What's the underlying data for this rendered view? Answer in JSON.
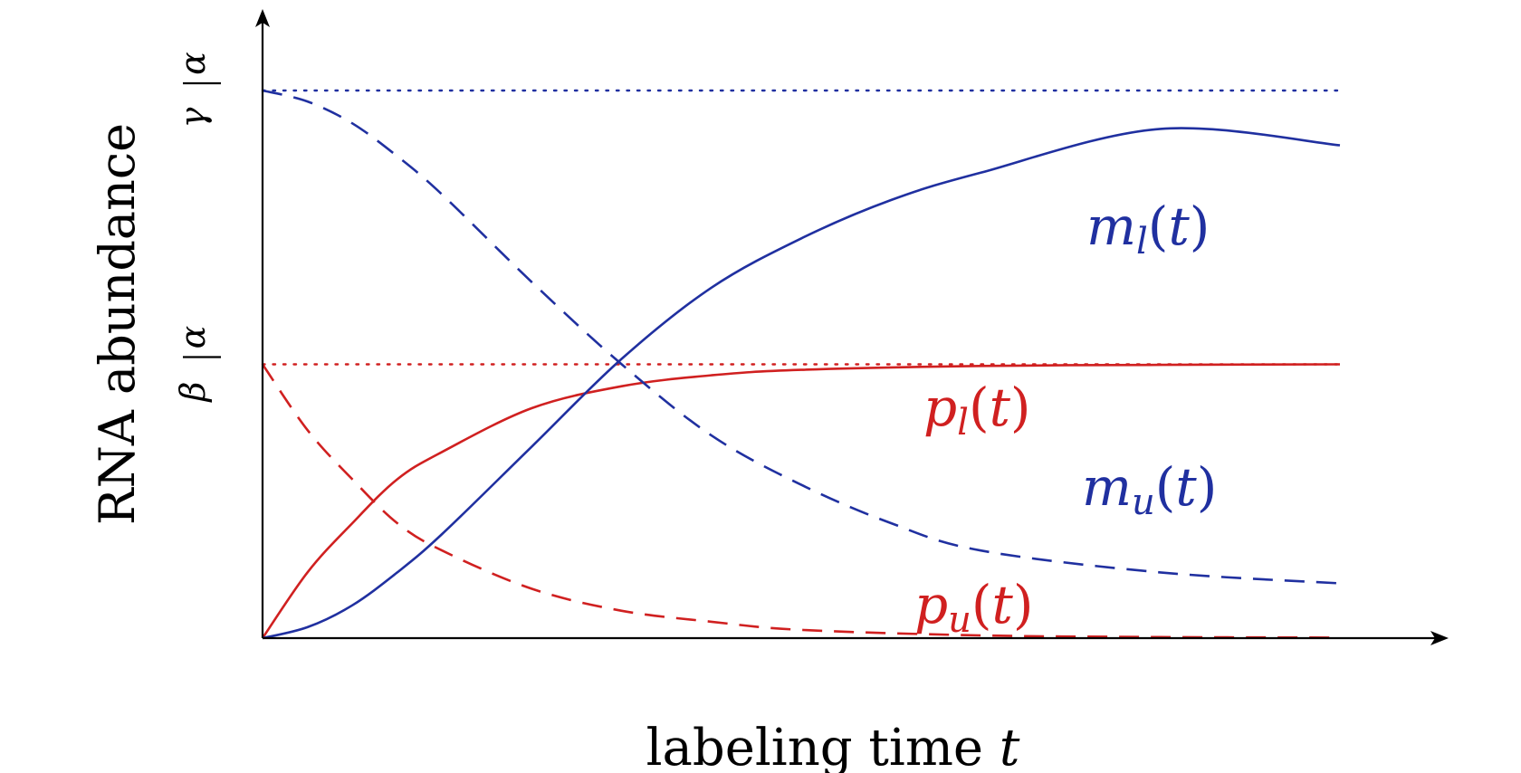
{
  "chart_data": {
    "type": "line",
    "xlabel": "labeling time t",
    "ylabel": "RNA abundance",
    "xlim": [
      0,
      6
    ],
    "ylim": [
      0,
      1.11
    ],
    "ytick_labels": [
      {
        "value": 0.5,
        "num": "α",
        "den": "β"
      },
      {
        "value": 1.0,
        "num": "α",
        "den": "γ"
      }
    ],
    "reference_lines": [
      {
        "name": "α/β",
        "y": 0.5,
        "style": "dotted",
        "color": "#d02020"
      },
      {
        "name": "α/γ",
        "y": 1.0,
        "style": "dotted",
        "color": "#2030a0"
      }
    ],
    "series": [
      {
        "name": "p_l(t)",
        "base": "p",
        "sub": "l",
        "color": "#d02020",
        "style": "solid",
        "x": [
          0,
          0.25,
          0.5,
          0.75,
          1,
          1.5,
          2,
          2.5,
          3,
          4,
          5,
          6
        ],
        "y": [
          0,
          0.12,
          0.21,
          0.29,
          0.34,
          0.42,
          0.46,
          0.48,
          0.49,
          0.497,
          0.499,
          0.5
        ]
      },
      {
        "name": "p_u(t)",
        "base": "p",
        "sub": "u",
        "color": "#d02020",
        "style": "dashed",
        "x": [
          0,
          0.25,
          0.5,
          0.75,
          1,
          1.5,
          2,
          2.5,
          3,
          4,
          5,
          6
        ],
        "y": [
          0.5,
          0.38,
          0.29,
          0.21,
          0.16,
          0.09,
          0.05,
          0.03,
          0.015,
          0.005,
          0.002,
          0.001
        ]
      },
      {
        "name": "m_l(t)",
        "base": "m",
        "sub": "l",
        "color": "#2030a0",
        "style": "solid",
        "x": [
          0,
          0.25,
          0.5,
          0.75,
          1,
          1.5,
          2,
          2.5,
          3,
          3.5,
          4,
          5,
          6
        ],
        "y": [
          0,
          0.02,
          0.06,
          0.12,
          0.19,
          0.35,
          0.51,
          0.64,
          0.73,
          0.8,
          0.85,
          0.93,
          0.9
        ]
      },
      {
        "name": "m_u(t)",
        "base": "m",
        "sub": "u",
        "color": "#2030a0",
        "style": "dashed",
        "x": [
          0,
          0.25,
          0.5,
          0.75,
          1,
          1.5,
          2,
          2.5,
          3,
          3.5,
          4,
          5,
          6
        ],
        "y": [
          1.0,
          0.98,
          0.94,
          0.88,
          0.81,
          0.65,
          0.5,
          0.37,
          0.28,
          0.21,
          0.16,
          0.12,
          0.1
        ]
      }
    ],
    "annotations": [
      {
        "series": "m_l(t)",
        "base": "m",
        "sub": "l",
        "color": "#2030a0"
      },
      {
        "series": "p_l(t)",
        "base": "p",
        "sub": "l",
        "color": "#d02020"
      },
      {
        "series": "m_u(t)",
        "base": "m",
        "sub": "u",
        "color": "#2030a0"
      },
      {
        "series": "p_u(t)",
        "base": "p",
        "sub": "u",
        "color": "#d02020"
      }
    ],
    "grid": false,
    "legend": "none (curves labeled directly)"
  }
}
